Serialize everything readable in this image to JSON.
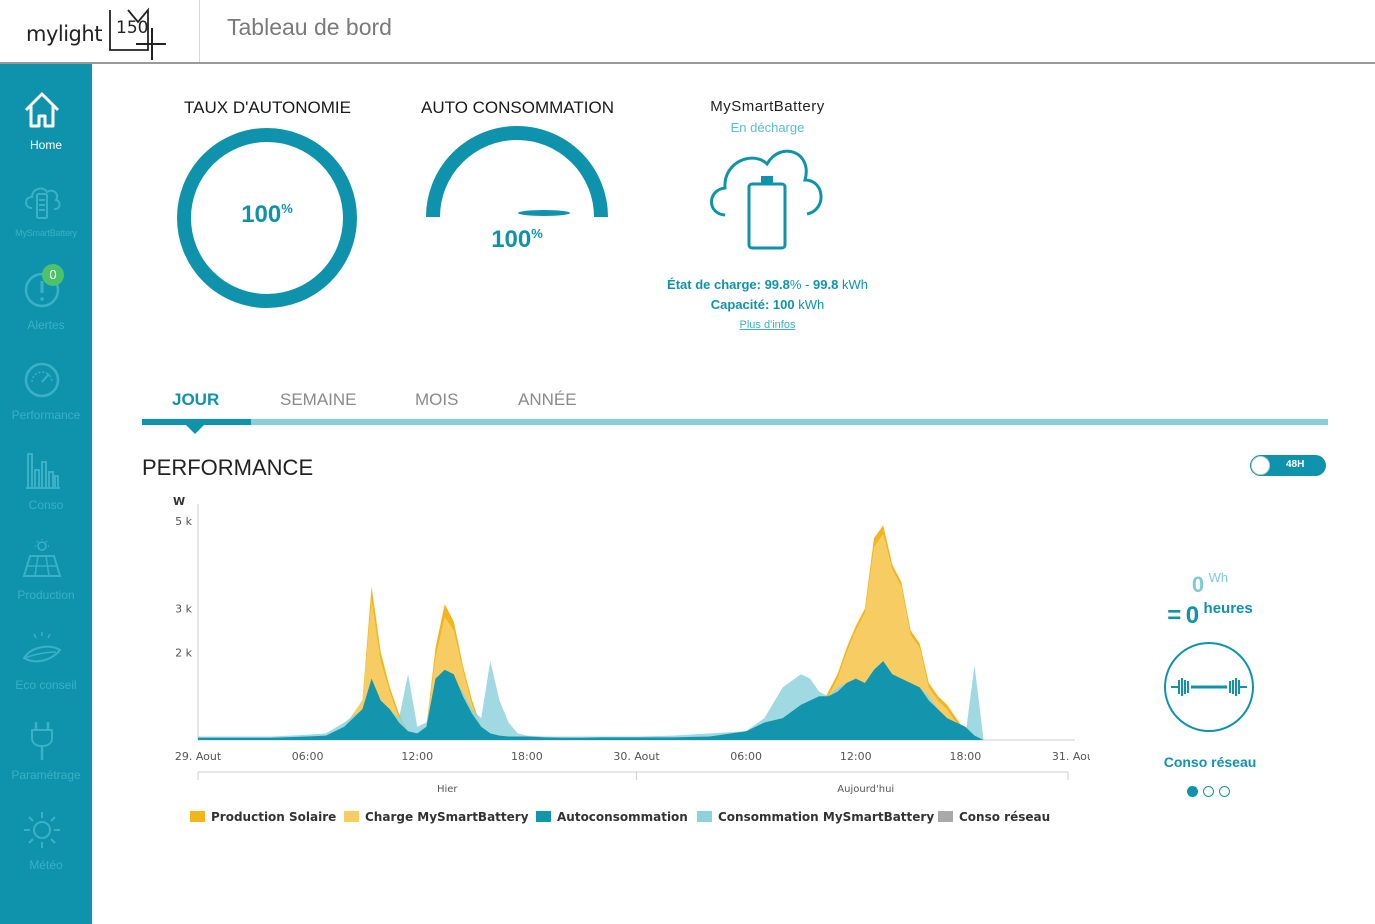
{
  "header": {
    "brand": "mylight",
    "brand_number": "150",
    "page_title": "Tableau de bord"
  },
  "sidebar": {
    "items": [
      {
        "label": "Home",
        "icon": "home-icon",
        "active": true
      },
      {
        "label": "MySmartBattery",
        "icon": "cloud-battery-icon"
      },
      {
        "label": "Alertes",
        "icon": "alert-icon",
        "badge": "0"
      },
      {
        "label": "Performance",
        "icon": "gauge-icon"
      },
      {
        "label": "Conso",
        "icon": "bar-chart-icon"
      },
      {
        "label": "Production",
        "icon": "solar-panel-icon"
      },
      {
        "label": "Eco conseil",
        "icon": "leaf-icon"
      },
      {
        "label": "Paramétrage",
        "icon": "plug-icon"
      },
      {
        "label": "Météo",
        "icon": "sun-icon"
      }
    ]
  },
  "kpis": {
    "autonomy": {
      "title": "TAUX D'AUTONOMIE",
      "value": "100",
      "unit": "%"
    },
    "self_consumption": {
      "title": "AUTO CONSOMMATION",
      "value": "100",
      "unit": "%"
    }
  },
  "battery": {
    "title": "MySmartBattery",
    "status": "En décharge",
    "charge_label": "État de charge:",
    "charge_percent": "99.8",
    "charge_percent_unit": "%",
    "charge_sep": " - ",
    "charge_kwh": "99.8",
    "charge_kwh_unit": " kWh",
    "capacity_label": "Capacité:",
    "capacity_value": "100",
    "capacity_unit": " kWh",
    "more_info": "Plus d'infos"
  },
  "tabs": [
    {
      "label": "JOUR",
      "active": true
    },
    {
      "label": "SEMAINE"
    },
    {
      "label": "MOIS"
    },
    {
      "label": "ANNÉE"
    }
  ],
  "performance": {
    "title": "PERFORMANCE",
    "toggle_label": "48H"
  },
  "chart_data": {
    "type": "area",
    "ylabel": "W",
    "y_ticks": [
      "2 k",
      "3 k",
      "5 k"
    ],
    "x_ticks": [
      "29. Aout",
      "06:00",
      "12:00",
      "18:00",
      "30. Aout",
      "06:00",
      "12:00",
      "18:00",
      "31. Aout"
    ],
    "period_labels": [
      "Hier",
      "Aujourd'hui"
    ],
    "x_hours": [
      0,
      2,
      4,
      6,
      7,
      8,
      9,
      9.5,
      10,
      10.5,
      11,
      11.5,
      12,
      12.5,
      13,
      13.5,
      14,
      14.5,
      15,
      15.5,
      16,
      16.5,
      17,
      17.5,
      18,
      19,
      20,
      21,
      22,
      24,
      26,
      28,
      30,
      31,
      32,
      33,
      33.5,
      34,
      34.5,
      35,
      35.5,
      36,
      36.5,
      37,
      37.5,
      38,
      38.5,
      39,
      39.5,
      40,
      40.5,
      41,
      41.5,
      42,
      42.5,
      43,
      43.5,
      44,
      44.5,
      45
    ],
    "series": [
      {
        "name": "Production Solaire",
        "color": "#f2b51d",
        "values": [
          0,
          0,
          0,
          0,
          0,
          300,
          900,
          3500,
          2000,
          1200,
          600,
          200,
          100,
          300,
          2100,
          3100,
          2700,
          1700,
          900,
          300,
          100,
          0,
          0,
          0,
          0,
          0,
          0,
          0,
          0,
          0,
          0,
          0,
          0,
          0,
          0,
          100,
          400,
          700,
          1100,
          1500,
          2100,
          2600,
          3000,
          4600,
          4900,
          4000,
          3600,
          2500,
          2200,
          1300,
          1000,
          800,
          500,
          200,
          0,
          0,
          0,
          0,
          0,
          0
        ]
      },
      {
        "name": "Charge MySmartBattery",
        "color": "#f7cd63",
        "values": [
          0,
          0,
          0,
          0,
          0,
          300,
          900,
          3200,
          1800,
          1100,
          500,
          200,
          100,
          300,
          1900,
          2800,
          2500,
          1600,
          800,
          300,
          100,
          0,
          0,
          0,
          0,
          0,
          0,
          0,
          0,
          0,
          0,
          0,
          0,
          0,
          0,
          100,
          400,
          700,
          1000,
          1400,
          2000,
          2500,
          2900,
          4400,
          4700,
          3900,
          3500,
          2400,
          2100,
          1200,
          900,
          700,
          400,
          200,
          0,
          0,
          0,
          0,
          0,
          0
        ]
      },
      {
        "name": "Autoconsommation",
        "color": "#1396ad",
        "values": [
          50,
          50,
          50,
          80,
          100,
          300,
          700,
          1400,
          900,
          700,
          400,
          200,
          150,
          300,
          1400,
          1600,
          1500,
          1000,
          600,
          300,
          150,
          100,
          80,
          80,
          80,
          60,
          50,
          50,
          60,
          60,
          60,
          80,
          200,
          400,
          500,
          800,
          900,
          1000,
          1000,
          1100,
          1300,
          1400,
          1300,
          1600,
          1800,
          1500,
          1400,
          1300,
          1200,
          900,
          700,
          500,
          400,
          300,
          100,
          0,
          0,
          0,
          0,
          0
        ]
      },
      {
        "name": "Consommation MySmartBattery",
        "color": "#8fd2dc",
        "values": [
          80,
          80,
          80,
          120,
          150,
          400,
          700,
          1300,
          900,
          700,
          500,
          1500,
          300,
          400,
          1300,
          1500,
          1400,
          1100,
          700,
          500,
          1800,
          900,
          400,
          150,
          100,
          80,
          80,
          80,
          80,
          80,
          100,
          150,
          200,
          500,
          1200,
          1500,
          1400,
          1100,
          1000,
          1200,
          1300,
          1400,
          1300,
          1600,
          1800,
          1500,
          1400,
          1300,
          1200,
          1000,
          700,
          500,
          300,
          100,
          1700,
          0,
          0,
          0,
          0,
          0
        ]
      },
      {
        "name": "Conso réseau",
        "color": "#a9a9a9",
        "values": []
      }
    ],
    "ylim": [
      0,
      5200
    ],
    "legend_position": "bottom"
  },
  "right_panel": {
    "wh_value": "0",
    "wh_unit": "Wh",
    "equals": "=",
    "hours_value": "0",
    "hours_unit": "heures",
    "label": "Conso réseau",
    "icon": "power-grid-icon"
  }
}
